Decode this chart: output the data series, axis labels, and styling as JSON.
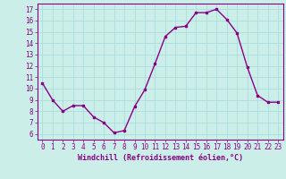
{
  "x": [
    0,
    1,
    2,
    3,
    4,
    5,
    6,
    7,
    8,
    9,
    10,
    11,
    12,
    13,
    14,
    15,
    16,
    17,
    18,
    19,
    20,
    21,
    22,
    23
  ],
  "y": [
    10.5,
    9.0,
    8.0,
    8.5,
    8.5,
    7.5,
    7.0,
    6.1,
    6.3,
    8.4,
    9.9,
    12.2,
    14.6,
    15.4,
    15.5,
    16.7,
    16.7,
    17.0,
    16.1,
    14.9,
    11.9,
    9.4,
    8.8,
    8.8
  ],
  "line_color": "#880088",
  "marker": "s",
  "marker_size": 2.0,
  "bg_color": "#cceee8",
  "grid_color": "#aadddd",
  "xlabel": "Windchill (Refroidissement éolien,°C)",
  "xlabel_color": "#880088",
  "tick_color": "#880088",
  "ylim": [
    5.5,
    17.5
  ],
  "yticks": [
    6,
    7,
    8,
    9,
    10,
    11,
    12,
    13,
    14,
    15,
    16,
    17
  ],
  "xticks": [
    0,
    1,
    2,
    3,
    4,
    5,
    6,
    7,
    8,
    9,
    10,
    11,
    12,
    13,
    14,
    15,
    16,
    17,
    18,
    19,
    20,
    21,
    22,
    23
  ],
  "line_width": 1.0
}
